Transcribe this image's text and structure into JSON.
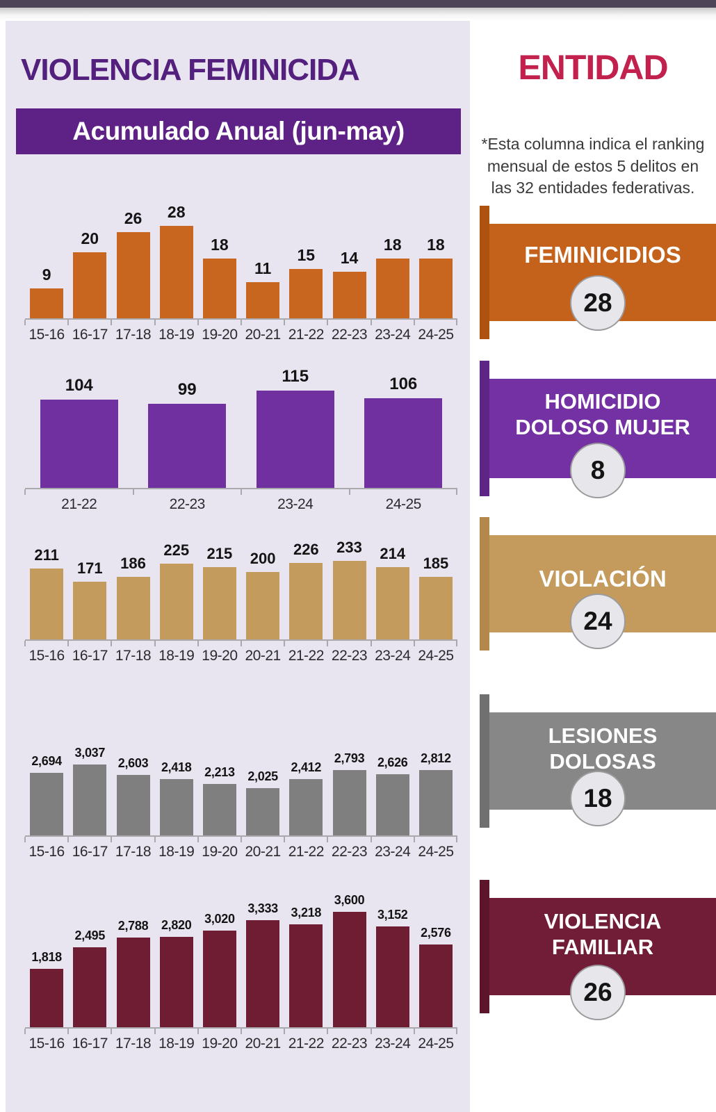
{
  "page": {
    "title": "VIOLENCIA FEMINICIDA",
    "subtitle_banner": "Acumulado Anual (jun-may)"
  },
  "entity_column": {
    "title": "ENTIDAD",
    "note": "*Esta columna indica el ranking mensual de estos 5 delitos en las 32 entidades federativas.",
    "ribbons": [
      {
        "label": "FEMINICIDIOS",
        "ranking": "28",
        "color": "#c4611a",
        "strip_color": "#ad530f"
      },
      {
        "label": "HOMICIDIO DOLOSO MUJER",
        "ranking": "8",
        "color": "#7331a3",
        "strip_color": "#5d2585"
      },
      {
        "label": "VIOLACIÓN",
        "ranking": "24",
        "color": "#c49b5d",
        "strip_color": "#b2884b"
      },
      {
        "label": "LESIONES DOLOSAS",
        "ranking": "18",
        "color": "#878787",
        "strip_color": "#707070"
      },
      {
        "label": "VIOLENCIA FAMILIAR",
        "ranking": "26",
        "color": "#721d37",
        "strip_color": "#5c152a"
      }
    ]
  },
  "chart_data": [
    {
      "type": "bar",
      "name": "feminicidios-acumulado-anual",
      "color": "#c8661f",
      "categories": [
        "15-16",
        "16-17",
        "17-18",
        "18-19",
        "19-20",
        "20-21",
        "21-22",
        "22-23",
        "23-24",
        "24-25"
      ],
      "values": [
        9,
        20,
        26,
        28,
        18,
        11,
        15,
        14,
        18,
        18
      ],
      "labels": [
        "9",
        "20",
        "26",
        "28",
        "18",
        "11",
        "15",
        "14",
        "18",
        "18"
      ]
    },
    {
      "type": "bar",
      "name": "homicidio-doloso-mujer-acumulado-anual",
      "color": "#7030a0",
      "categories": [
        "21-22",
        "22-23",
        "23-24",
        "24-25"
      ],
      "values": [
        104,
        99,
        115,
        106
      ],
      "labels": [
        "104",
        "99",
        "115",
        "106"
      ]
    },
    {
      "type": "bar",
      "name": "violacion-acumulado-anual",
      "color": "#c39b5c",
      "categories": [
        "15-16",
        "16-17",
        "17-18",
        "18-19",
        "19-20",
        "20-21",
        "21-22",
        "22-23",
        "23-24",
        "24-25"
      ],
      "values": [
        211,
        171,
        186,
        225,
        215,
        200,
        226,
        233,
        214,
        185
      ],
      "labels": [
        "211",
        "171",
        "186",
        "225",
        "215",
        "200",
        "226",
        "233",
        "214",
        "185"
      ]
    },
    {
      "type": "bar",
      "name": "lesiones-dolosas-acumulado-anual",
      "color": "#7f7f7f",
      "categories": [
        "15-16",
        "16-17",
        "17-18",
        "18-19",
        "19-20",
        "20-21",
        "21-22",
        "22-23",
        "23-24",
        "24-25"
      ],
      "values": [
        2694,
        3037,
        2603,
        2418,
        2213,
        2025,
        2412,
        2793,
        2626,
        2812
      ],
      "labels": [
        "2,694",
        "3,037",
        "2,603",
        "2,418",
        "2,213",
        "2,025",
        "2,412",
        "2,793",
        "2,626",
        "2,812"
      ]
    },
    {
      "type": "bar",
      "name": "violencia-familiar-acumulado-anual",
      "color": "#6e1d33",
      "categories": [
        "15-16",
        "16-17",
        "17-18",
        "18-19",
        "19-20",
        "20-21",
        "21-22",
        "22-23",
        "23-24",
        "24-25"
      ],
      "values": [
        1818,
        2495,
        2788,
        2820,
        3020,
        3333,
        3218,
        3600,
        3152,
        2576
      ],
      "labels": [
        "1,818",
        "2,495",
        "2,788",
        "2,820",
        "3,020",
        "3,333",
        "3,218",
        "3,600",
        "3,152",
        "2,576"
      ]
    }
  ]
}
